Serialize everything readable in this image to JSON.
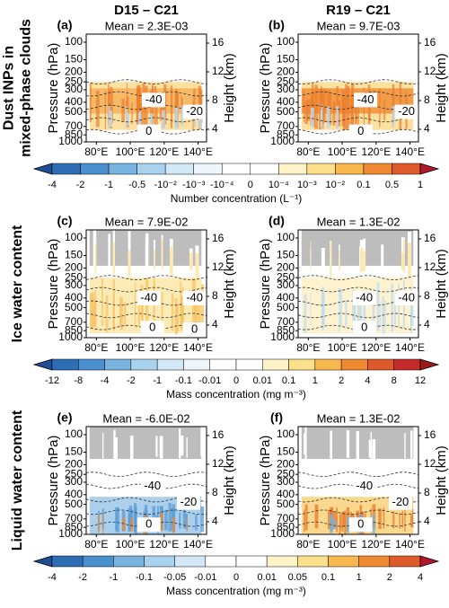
{
  "columns": [
    "D15 – C21",
    "R19 – C21"
  ],
  "row_labels": [
    [
      "Dust INPs in",
      "mixed-phase clouds"
    ],
    [
      "Ice water content"
    ],
    [
      "Liquid water content"
    ]
  ],
  "axes": {
    "y_label": "Pressure (hPa)",
    "y2_label": "Height (km)",
    "ylim": [
      1000,
      83
    ],
    "ylog": true,
    "yticks": [
      100,
      150,
      200,
      250,
      300,
      400,
      500,
      700,
      850,
      1000
    ],
    "y2lim": [
      2.25,
      17.25
    ],
    "y2ticks": [
      4,
      8,
      12,
      16
    ],
    "xlim": [
      74,
      145
    ],
    "xticks": [
      {
        "value": 80,
        "label": "80°E"
      },
      {
        "value": 100,
        "label": "100°E"
      },
      {
        "value": 120,
        "label": "120°E"
      },
      {
        "value": 140,
        "label": "140°E"
      }
    ]
  },
  "panels": [
    {
      "tag": "(a)",
      "mean": "Mean = 2.3E-03",
      "contour_labels": [
        "-40",
        "-20",
        "0"
      ]
    },
    {
      "tag": "(b)",
      "mean": "Mean = 9.7E-03",
      "contour_labels": [
        "-40",
        "-20",
        "0"
      ]
    },
    {
      "tag": "(c)",
      "mean": "Mean = 7.9E-02",
      "contour_labels": [
        "-40",
        "-40",
        "0",
        "0"
      ]
    },
    {
      "tag": "(d)",
      "mean": "Mean = 1.3E-02",
      "contour_labels": [
        "-40",
        "-40",
        "0"
      ]
    },
    {
      "tag": "(e)",
      "mean": "Mean = -6.0E-02",
      "contour_labels": [
        "-40",
        "-20",
        "0"
      ]
    },
    {
      "tag": "(f)",
      "mean": "Mean = 1.3E-02",
      "contour_labels": [
        "-40",
        "-20",
        "0"
      ]
    }
  ],
  "colorbars": [
    {
      "title": "Number concentration (L⁻¹)",
      "labels": [
        "-4",
        "-2",
        "-1",
        "-0.5",
        "-10⁻²",
        "-10⁻³",
        "-10⁻⁴",
        "0",
        "10⁻⁴",
        "10⁻³",
        "10⁻²",
        "0.1",
        "0.5",
        "1"
      ],
      "colors": [
        "#1f4e96",
        "#2e6db4",
        "#4a90cf",
        "#79b3e0",
        "#a9d2ef",
        "#d3e8f6",
        "#eef6fb",
        "#ffffff",
        "#ffffff",
        "#fdf2c8",
        "#fde08a",
        "#f8b84e",
        "#ef8a32",
        "#df5a2b",
        "#b2182b"
      ]
    },
    {
      "title": "Mass concentration (mg m⁻³)",
      "labels": [
        "-12",
        "-8",
        "-4",
        "-2",
        "-1",
        "-0.1",
        "-0.01",
        "0",
        "0.01",
        "0.1",
        "1",
        "2",
        "4",
        "8",
        "12"
      ],
      "colors": [
        "#1f4e96",
        "#2e6db4",
        "#4a90cf",
        "#79b3e0",
        "#a9d2ef",
        "#d3e8f6",
        "#eef6fb",
        "#ffffff",
        "#ffffff",
        "#fdf2c8",
        "#fde08a",
        "#f8b84e",
        "#ef8a32",
        "#df5a2b",
        "#c52a2a",
        "#9e1a1a"
      ]
    },
    {
      "title": "Mass concentration (mg m⁻³)",
      "labels": [
        "-4",
        "-2",
        "-1",
        "-0.1",
        "-0.05",
        "-0.01",
        "0",
        "0.01",
        "0.05",
        "0.1",
        "1",
        "2",
        "4"
      ],
      "colors": [
        "#1f4e96",
        "#2e6db4",
        "#4a90cf",
        "#79b3e0",
        "#a9d2ef",
        "#d3e8f6",
        "#ffffff",
        "#ffffff",
        "#fdf2c8",
        "#fde08a",
        "#f8b84e",
        "#ef8a32",
        "#df5a2b",
        "#b2182b"
      ]
    }
  ]
}
